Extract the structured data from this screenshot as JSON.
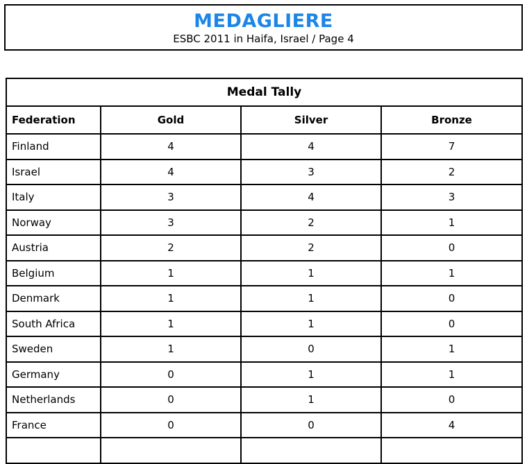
{
  "page": {
    "background": "#ffffff",
    "border_color": "#000000"
  },
  "header": {
    "title": "MEDAGLIERE",
    "title_color": "#1c86e8",
    "subtitle": "ESBC 2011 in Haifa, Israel / Page 4",
    "subtitle_color": "#000000"
  },
  "table": {
    "title": "Medal Tally",
    "columns": [
      "Federation",
      "Gold",
      "Silver",
      "Bronze"
    ],
    "rows": [
      {
        "federation": "Finland",
        "gold": "4",
        "silver": "4",
        "bronze": "7"
      },
      {
        "federation": "Israel",
        "gold": "4",
        "silver": "3",
        "bronze": "2"
      },
      {
        "federation": "Italy",
        "gold": "3",
        "silver": "4",
        "bronze": "3"
      },
      {
        "federation": "Norway",
        "gold": "3",
        "silver": "2",
        "bronze": "1"
      },
      {
        "federation": "Austria",
        "gold": "2",
        "silver": "2",
        "bronze": "0"
      },
      {
        "federation": "Belgium",
        "gold": "1",
        "silver": "1",
        "bronze": "1"
      },
      {
        "federation": "Denmark",
        "gold": "1",
        "silver": "1",
        "bronze": "0"
      },
      {
        "federation": "South Africa",
        "gold": "1",
        "silver": "1",
        "bronze": "0"
      },
      {
        "federation": "Sweden",
        "gold": "1",
        "silver": "0",
        "bronze": "1"
      },
      {
        "federation": "Germany",
        "gold": "0",
        "silver": "1",
        "bronze": "1"
      },
      {
        "federation": "Netherlands",
        "gold": "0",
        "silver": "1",
        "bronze": "0"
      },
      {
        "federation": "France",
        "gold": "0",
        "silver": "0",
        "bronze": "4"
      }
    ]
  }
}
